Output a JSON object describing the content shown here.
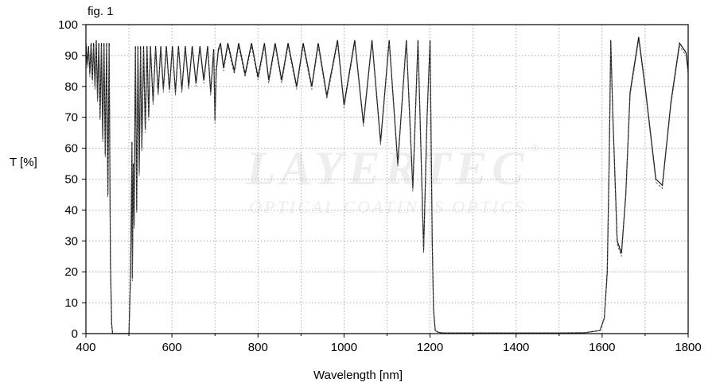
{
  "figure_label": "fig. 1",
  "watermark": {
    "brand": "LAYERTEC",
    "tagline": "OPTICAL COATINGS  OPTICS",
    "registered": "®"
  },
  "chart_data": {
    "type": "line",
    "title": "",
    "xlabel": "Wavelength [nm]",
    "ylabel": "T [%]",
    "xlim": [
      400,
      1800
    ],
    "ylim": [
      0,
      100
    ],
    "xticks": [
      400,
      600,
      800,
      1000,
      1200,
      1400,
      1600,
      1800
    ],
    "yticks": [
      0,
      10,
      20,
      30,
      40,
      50,
      60,
      70,
      80,
      90,
      100
    ],
    "grid": true,
    "minor_x_grid": [
      500,
      700,
      900,
      1100,
      1300,
      1500,
      1700
    ],
    "series": [
      {
        "style": "solid",
        "x": [
          400,
          403,
          406,
          409,
          412,
          415,
          418,
          421,
          424,
          427,
          430,
          433,
          436,
          439,
          442,
          445,
          448,
          451,
          454,
          457,
          460,
          462,
          470,
          480,
          490,
          500,
          504,
          507,
          508,
          510,
          512,
          515,
          518,
          521,
          524,
          527,
          530,
          534,
          538,
          542,
          546,
          550,
          556,
          562,
          568,
          574,
          580,
          587,
          594,
          601,
          608,
          615,
          623,
          631,
          639,
          647,
          656,
          665,
          674,
          683,
          690,
          697,
          700,
          703,
          708,
          713,
          720,
          730,
          745,
          755,
          770,
          785,
          800,
          815,
          825,
          840,
          855,
          870,
          890,
          905,
          925,
          940,
          960,
          985,
          1000,
          1025,
          1045,
          1065,
          1085,
          1105,
          1125,
          1145,
          1160,
          1172,
          1185,
          1193,
          1200,
          1205,
          1208,
          1212,
          1218,
          1225,
          1235,
          1260,
          1300,
          1400,
          1500,
          1560,
          1595,
          1605,
          1612,
          1617,
          1620,
          1625,
          1635,
          1645,
          1655,
          1665,
          1685,
          1700,
          1725,
          1740,
          1760,
          1780,
          1795,
          1800
        ],
        "y": [
          94,
          87,
          93,
          84,
          94,
          82,
          94,
          80,
          95,
          76,
          94,
          70,
          94,
          63,
          94,
          58,
          94,
          45,
          94,
          23,
          3,
          0,
          0,
          0,
          0,
          0,
          20,
          62,
          18,
          55,
          35,
          93,
          40,
          93,
          52,
          93,
          60,
          93,
          66,
          93,
          70,
          93,
          75,
          93,
          78,
          93,
          79,
          93,
          79,
          93,
          78,
          93,
          79,
          93,
          80,
          93,
          81,
          93,
          82,
          93,
          78,
          92,
          69,
          85,
          92,
          94,
          86,
          94,
          85,
          94,
          84,
          94,
          83,
          94,
          82,
          94,
          82,
          94,
          80,
          94,
          80,
          94,
          77,
          95,
          74,
          95,
          68,
          95,
          62,
          95,
          55,
          95,
          47,
          95,
          27,
          70,
          95,
          30,
          8,
          1,
          0.5,
          0.3,
          0.2,
          0.2,
          0.2,
          0.2,
          0.2,
          0.3,
          1,
          5,
          20,
          60,
          95,
          70,
          30,
          26,
          45,
          78,
          96,
          80,
          50,
          48,
          75,
          94,
          91,
          85
        ]
      },
      {
        "style": "dashed",
        "x": [
          400,
          403,
          406,
          409,
          412,
          415,
          418,
          421,
          424,
          427,
          430,
          433,
          436,
          439,
          442,
          445,
          448,
          451,
          454,
          457,
          460,
          462,
          470,
          480,
          490,
          500,
          504,
          507,
          508,
          510,
          512,
          515,
          518,
          521,
          524,
          527,
          530,
          534,
          538,
          542,
          546,
          550,
          556,
          562,
          568,
          574,
          580,
          587,
          594,
          601,
          608,
          615,
          623,
          631,
          639,
          647,
          656,
          665,
          674,
          683,
          690,
          697,
          700,
          703,
          708,
          713,
          720,
          730,
          745,
          755,
          770,
          785,
          800,
          815,
          825,
          840,
          855,
          870,
          890,
          905,
          925,
          940,
          960,
          985,
          1000,
          1025,
          1045,
          1065,
          1085,
          1105,
          1125,
          1145,
          1160,
          1172,
          1185,
          1193,
          1200,
          1205,
          1208,
          1212,
          1218,
          1225,
          1235,
          1260,
          1300,
          1400,
          1500,
          1560,
          1595,
          1605,
          1612,
          1617,
          1620,
          1625,
          1635,
          1645,
          1655,
          1665,
          1685,
          1700,
          1725,
          1740,
          1760,
          1780,
          1795,
          1800
        ],
        "y": [
          93,
          86,
          92,
          83,
          93,
          81,
          93,
          79,
          94,
          75,
          93,
          69,
          93,
          62,
          93,
          57,
          93,
          44,
          93,
          22,
          3,
          0,
          0,
          0,
          0,
          0,
          19,
          61,
          17,
          54,
          34,
          92,
          39,
          92,
          51,
          92,
          59,
          92,
          65,
          92,
          69,
          92,
          74,
          92,
          77,
          92,
          78,
          92,
          78,
          92,
          77,
          92,
          78,
          92,
          79,
          92,
          80,
          92,
          81,
          92,
          77,
          91,
          68,
          84,
          91,
          93,
          85,
          93,
          84,
          93,
          83,
          93,
          82,
          93,
          81,
          93,
          81,
          93,
          79,
          93,
          79,
          93,
          76,
          94,
          73,
          94,
          67,
          94,
          61,
          94,
          54,
          94,
          46,
          94,
          26,
          69,
          94,
          29,
          7,
          1,
          0.4,
          0.3,
          0.2,
          0.2,
          0.2,
          0.2,
          0.2,
          0.3,
          1,
          5,
          19,
          59,
          94,
          69,
          29,
          25,
          44,
          77,
          95,
          79,
          49,
          47,
          74,
          93,
          90,
          84
        ]
      }
    ]
  }
}
